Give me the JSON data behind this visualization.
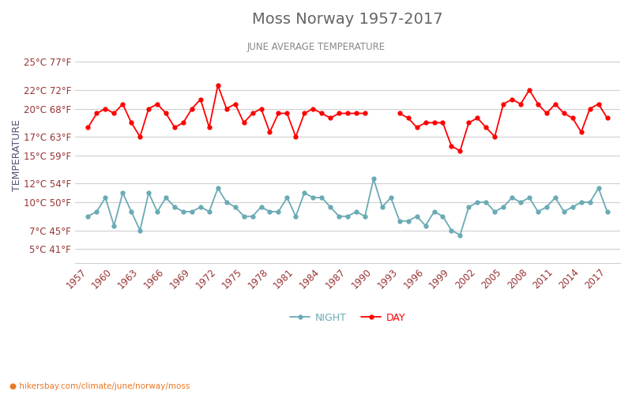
{
  "title": "Moss Norway 1957-2017",
  "subtitle": "JUNE AVERAGE TEMPERATURE",
  "ylabel": "TEMPERATURE",
  "xlabel_url": "hikersbay.com/climate/june/norway/moss",
  "years": [
    1957,
    1958,
    1959,
    1960,
    1961,
    1962,
    1963,
    1964,
    1965,
    1966,
    1967,
    1968,
    1969,
    1970,
    1971,
    1972,
    1973,
    1974,
    1975,
    1976,
    1977,
    1978,
    1979,
    1980,
    1981,
    1982,
    1983,
    1984,
    1985,
    1986,
    1987,
    1988,
    1989,
    1990,
    1991,
    1992,
    1993,
    1994,
    1995,
    1996,
    1997,
    1998,
    1999,
    2000,
    2001,
    2002,
    2003,
    2004,
    2005,
    2006,
    2007,
    2008,
    2009,
    2010,
    2011,
    2012,
    2013,
    2014,
    2015,
    2016,
    2017
  ],
  "day": [
    18.0,
    19.5,
    20.0,
    19.5,
    20.5,
    18.5,
    17.0,
    20.0,
    20.5,
    19.5,
    18.0,
    18.5,
    20.0,
    21.0,
    18.0,
    22.5,
    20.0,
    20.5,
    18.5,
    19.5,
    20.0,
    17.5,
    19.5,
    19.5,
    17.0,
    19.5,
    20.0,
    19.5,
    19.0,
    19.5,
    19.5,
    19.5,
    19.5,
    null,
    null,
    null,
    19.5,
    19.0,
    18.0,
    18.5,
    18.5,
    18.5,
    16.0,
    15.5,
    18.5,
    19.0,
    18.0,
    17.0,
    20.5,
    21.0,
    20.5,
    22.0,
    20.5,
    19.5,
    20.5,
    19.5,
    19.0,
    17.5,
    20.0,
    20.5,
    19.0
  ],
  "night": [
    8.5,
    9.0,
    10.5,
    7.5,
    11.0,
    9.0,
    7.0,
    11.0,
    9.0,
    10.5,
    9.5,
    9.0,
    9.0,
    9.5,
    9.0,
    11.5,
    10.0,
    9.5,
    8.5,
    8.5,
    9.5,
    9.0,
    9.0,
    10.5,
    8.5,
    11.0,
    10.5,
    10.5,
    9.5,
    8.5,
    8.5,
    9.0,
    8.5,
    12.5,
    9.5,
    10.5,
    8.0,
    8.0,
    8.5,
    7.5,
    9.0,
    8.5,
    7.0,
    6.5,
    9.5,
    10.0,
    10.0,
    9.0,
    9.5,
    10.5,
    10.0,
    10.5,
    9.0,
    9.5,
    10.5,
    9.0,
    9.5,
    10.0,
    10.0,
    11.5,
    9.0
  ],
  "day_color": "#ff0000",
  "night_color": "#6aaab5",
  "bg_color": "#ffffff",
  "grid_color": "#d0d0d0",
  "title_color": "#666666",
  "subtitle_color": "#888888",
  "ylabel_color": "#555577",
  "tick_color": "#993333",
  "yticks_c": [
    5,
    7,
    10,
    12,
    15,
    17,
    20,
    22,
    25
  ],
  "yticks_f": [
    41,
    45,
    50,
    54,
    59,
    63,
    68,
    72,
    77
  ],
  "ylim": [
    3.5,
    26.5
  ],
  "xlim_left": 1955.5,
  "xlim_right": 2018.5,
  "legend_night": "NIGHT",
  "legend_day": "DAY"
}
